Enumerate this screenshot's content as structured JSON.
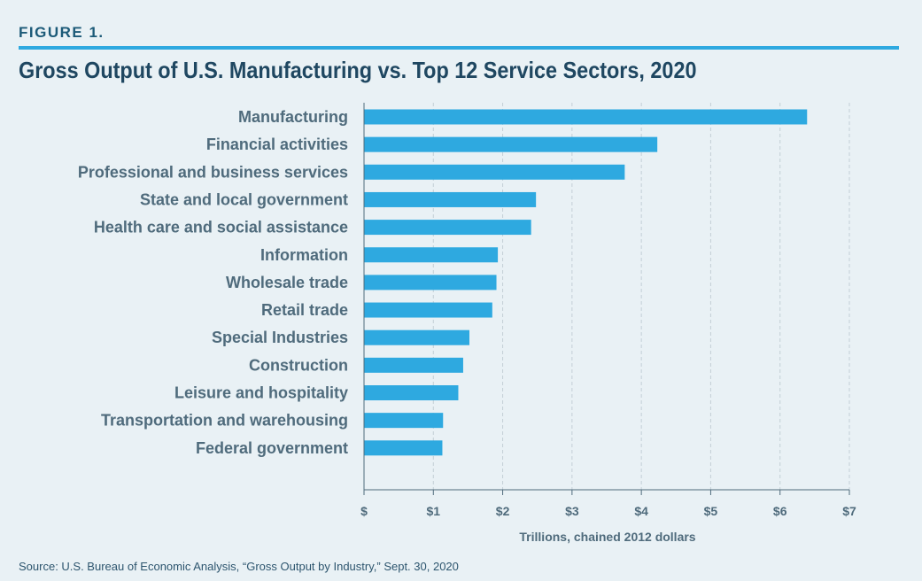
{
  "figure_label": "FIGURE 1.",
  "source": "Source: U.S. Bureau of Economic Analysis, “Gross Output by Industry,” Sept. 30, 2020",
  "colors": {
    "bar": "#2ea9e0",
    "accent": "#2ea9e0",
    "title": "#1f4761",
    "label": "#4f6b7c"
  },
  "chart_data": {
    "type": "bar",
    "orientation": "horizontal",
    "title": "Gross Output of U.S. Manufacturing vs. Top 12 Service Sectors, 2020",
    "xlabel": "Trillions, chained 2012 dollars",
    "ylabel": "",
    "xlim": [
      0,
      7
    ],
    "grid": true,
    "categories": [
      "Manufacturing",
      "Financial activities",
      "Professional and business services",
      "State and local government",
      "Health care and social assistance",
      "Information",
      "Wholesale trade",
      "Retail trade",
      "Special Industries",
      "Construction",
      "Leisure and hospitality",
      "Transportation and warehousing",
      "Federal government"
    ],
    "values": [
      6.39,
      4.23,
      3.76,
      2.48,
      2.41,
      1.93,
      1.91,
      1.85,
      1.52,
      1.43,
      1.36,
      1.14,
      1.13
    ],
    "ticks": [
      "$",
      "$1",
      "$2",
      "$3",
      "$4",
      "$5",
      "$6",
      "$7"
    ]
  }
}
